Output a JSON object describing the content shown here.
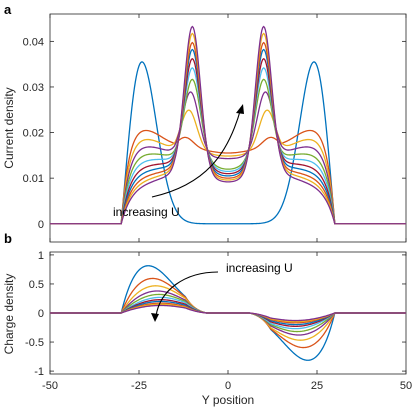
{
  "chart_data": [
    {
      "type": "line",
      "panel_label": "a",
      "ylabel": "Current density",
      "xlim": [
        -50,
        50
      ],
      "ylim": [
        -0.004,
        0.046
      ],
      "yticks": [
        0,
        0.01,
        0.02,
        0.03,
        0.04
      ],
      "ytick_labels": [
        "0",
        "0.01",
        "0.02",
        "0.03",
        "0.04"
      ],
      "show_xticklabels": false,
      "annotation": "increasing U",
      "colors": [
        "#0072BD",
        "#D95319",
        "#EDB120",
        "#7E2F8E",
        "#77AC30",
        "#4DBEEE",
        "#A2142F",
        "#0072BD",
        "#D95319",
        "#EDB120",
        "#7E2F8E"
      ],
      "series_params": [
        {
          "peak": 0.039,
          "shoulder": 0.0,
          "mid": 0.0,
          "pos": 25
        },
        {
          "peak": 0.019,
          "shoulder": 0.0245,
          "mid": 0.0165,
          "pos": 12
        },
        {
          "peak": 0.025,
          "shoulder": 0.0215,
          "mid": 0.0158,
          "pos": 11
        },
        {
          "peak": 0.029,
          "shoulder": 0.019,
          "mid": 0.0152,
          "pos": 10.5
        },
        {
          "peak": 0.032,
          "shoulder": 0.0165,
          "mid": 0.0146,
          "pos": 10
        },
        {
          "peak": 0.0345,
          "shoulder": 0.0145,
          "mid": 0.014,
          "pos": 10
        },
        {
          "peak": 0.0365,
          "shoulder": 0.0127,
          "mid": 0.0134,
          "pos": 10
        },
        {
          "peak": 0.0385,
          "shoulder": 0.0112,
          "mid": 0.0128,
          "pos": 10
        },
        {
          "peak": 0.04,
          "shoulder": 0.0098,
          "mid": 0.0122,
          "pos": 10
        },
        {
          "peak": 0.042,
          "shoulder": 0.0086,
          "mid": 0.0117,
          "pos": 10
        },
        {
          "peak": 0.0435,
          "shoulder": 0.0075,
          "mid": 0.0112,
          "pos": 10
        }
      ]
    },
    {
      "type": "line",
      "panel_label": "b",
      "xlabel": "Y position",
      "ylabel": "Charge density",
      "xlim": [
        -50,
        50
      ],
      "ylim": [
        -1.05,
        1.05
      ],
      "xticks": [
        -50,
        -25,
        0,
        25,
        50
      ],
      "xtick_labels": [
        "-50",
        "-25",
        "0",
        "25",
        "50"
      ],
      "yticks": [
        -1,
        -0.5,
        0,
        0.5,
        1
      ],
      "ytick_labels": [
        "-1",
        "-0.5",
        "0",
        "0.5",
        "1"
      ],
      "annotation": "increasing U",
      "colors": [
        "#0072BD",
        "#D95319",
        "#EDB120",
        "#7E2F8E",
        "#77AC30",
        "#4DBEEE",
        "#A2142F",
        "#0072BD",
        "#D95319",
        "#EDB120",
        "#7E2F8E"
      ],
      "series_params": [
        {
          "amp": 0.83,
          "center": 23
        },
        {
          "amp": 0.6,
          "center": 21.5
        },
        {
          "amp": 0.47,
          "center": 20.5
        },
        {
          "amp": 0.38,
          "center": 20
        },
        {
          "amp": 0.32,
          "center": 19.5
        },
        {
          "amp": 0.27,
          "center": 19
        },
        {
          "amp": 0.23,
          "center": 19
        },
        {
          "amp": 0.2,
          "center": 19
        },
        {
          "amp": 0.17,
          "center": 19
        },
        {
          "amp": 0.15,
          "center": 19
        },
        {
          "amp": 0.13,
          "center": 19
        }
      ]
    }
  ]
}
